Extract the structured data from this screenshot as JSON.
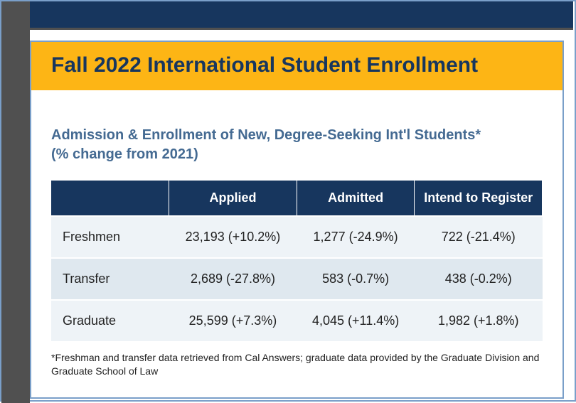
{
  "colors": {
    "navy": "#17365e",
    "gold": "#fdb515",
    "subtitle": "#446a92",
    "row_odd_bg": "#eef3f7",
    "row_even_bg": "#dfe8ef",
    "frame_border": "#7a9fc9",
    "dark_strip": "#505050"
  },
  "title": "Fall 2022 International Student Enrollment",
  "subtitle_line1": "Admission & Enrollment of New, Degree-Seeking Int'l Students*",
  "subtitle_line2": "(% change from 2021)",
  "table": {
    "columns": [
      "",
      "Applied",
      "Admitted",
      "Intend to Register"
    ],
    "rows": [
      {
        "label": "Freshmen",
        "applied": "23,193 (+10.2%)",
        "admitted": "1,277 (-24.9%)",
        "register": "722 (-21.4%)"
      },
      {
        "label": "Transfer",
        "applied": "2,689 (-27.8%)",
        "admitted": "583 (-0.7%)",
        "register": "438 (-0.2%)"
      },
      {
        "label": "Graduate",
        "applied": "25,599 (+7.3%)",
        "admitted": "4,045 (+11.4%)",
        "register": "1,982 (+1.8%)"
      }
    ],
    "header_bg": "#17365e",
    "header_fg": "#ffffff",
    "header_fontsize": 18,
    "cell_fontsize": 18
  },
  "footnote": "*Freshman and transfer data retrieved from Cal Answers; graduate data provided by the Graduate Division and Graduate School of Law"
}
